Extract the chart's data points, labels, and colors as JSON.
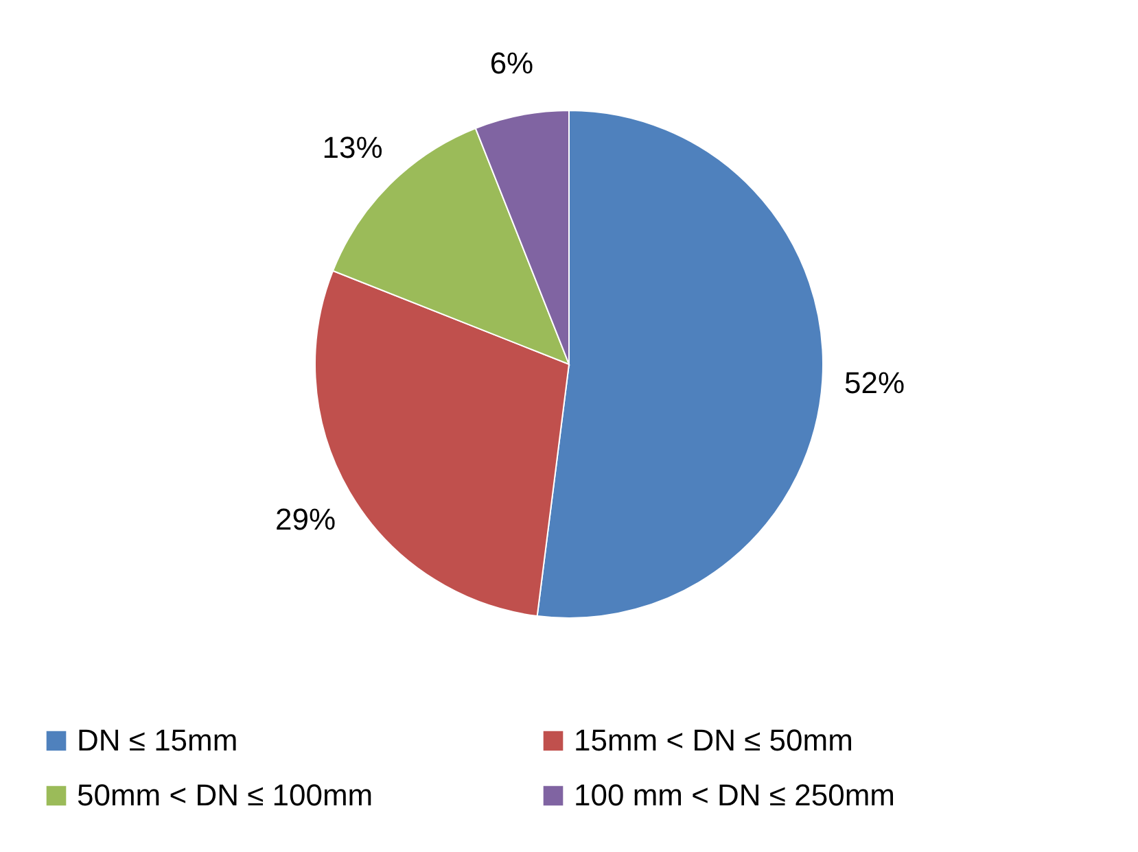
{
  "chart_data": {
    "type": "pie",
    "categories": [
      "DN ≤ 15mm",
      "15mm < DN ≤ 50mm",
      "50mm < DN ≤ 100mm",
      "100 mm < DN ≤ 250mm"
    ],
    "values": [
      52,
      29,
      13,
      6
    ],
    "value_labels": [
      "52%",
      "29%",
      "13%",
      "6%"
    ],
    "colors": [
      "#4f81bd",
      "#c0504d",
      "#9bbb59",
      "#8064a2"
    ],
    "legend": "bottom"
  }
}
